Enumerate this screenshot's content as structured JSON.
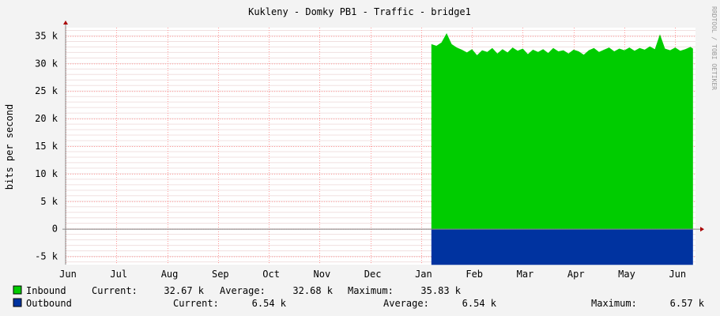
{
  "chart_data": {
    "type": "area",
    "title": "Kukleny - Domky PB1 - Traffic - bridge1",
    "ylabel": "bits per second",
    "watermark": "RRDTOOL / TOBI OETIKER",
    "grid": true,
    "ylim": [
      -6500,
      36500
    ],
    "y_ticks": [
      -5000,
      0,
      5000,
      10000,
      15000,
      20000,
      25000,
      30000,
      35000
    ],
    "y_tick_labels": [
      "-5 k",
      "0",
      "5 k",
      "10 k",
      "15 k",
      "20 k",
      "25 k",
      "30 k",
      "35 k"
    ],
    "x_ticks": [
      "Jun",
      "Jul",
      "Aug",
      "Sep",
      "Oct",
      "Nov",
      "Dec",
      "Jan",
      "Feb",
      "Mar",
      "Apr",
      "May",
      "Jun"
    ],
    "x_tick_positions": [
      0,
      1,
      2,
      3,
      4,
      5,
      6,
      7,
      8,
      9,
      10,
      11,
      12
    ],
    "xlim": [
      0,
      12.4
    ],
    "data_start": 7.2,
    "data_end": 12.35,
    "colors": {
      "inbound": "#00cc00",
      "outbound": "#0033a0",
      "grid": "#ff9999",
      "axis": "#888888"
    },
    "series": [
      {
        "name": "Inbound",
        "color": "#00cc00",
        "x": [
          7.2,
          7.3,
          7.4,
          7.5,
          7.6,
          7.7,
          7.8,
          7.9,
          8.0,
          8.1,
          8.2,
          8.3,
          8.4,
          8.5,
          8.6,
          8.7,
          8.8,
          8.9,
          9.0,
          9.1,
          9.2,
          9.3,
          9.4,
          9.5,
          9.6,
          9.7,
          9.8,
          9.9,
          10.0,
          10.1,
          10.2,
          10.3,
          10.4,
          10.5,
          10.6,
          10.7,
          10.8,
          10.9,
          11.0,
          11.1,
          11.2,
          11.3,
          11.4,
          11.5,
          11.6,
          11.7,
          11.8,
          11.9,
          12.0,
          12.1,
          12.2,
          12.3,
          12.35
        ],
        "values": [
          33500,
          33200,
          33800,
          35500,
          33500,
          32900,
          32500,
          32000,
          32600,
          31500,
          32400,
          32100,
          32800,
          31800,
          32600,
          32000,
          32900,
          32300,
          32700,
          31700,
          32500,
          32100,
          32600,
          31900,
          32800,
          32200,
          32400,
          31800,
          32500,
          32200,
          31600,
          32400,
          32800,
          32100,
          32500,
          32900,
          32200,
          32700,
          32400,
          32900,
          32300,
          32800,
          32500,
          33100,
          32600,
          35300,
          32700,
          32400,
          32900,
          32300,
          32600,
          33000,
          32700
        ]
      },
      {
        "name": "Outbound",
        "color": "#0033a0",
        "x": [
          7.2,
          12.35
        ],
        "values": [
          -6540,
          -6540
        ]
      }
    ]
  },
  "legend": [
    {
      "name": "Inbound",
      "color": "#00cc00",
      "current_label": "Current:",
      "current": "32.67 k",
      "average_label": "Average:",
      "average": "32.68 k",
      "maximum_label": "Maximum:",
      "maximum": "35.83 k"
    },
    {
      "name": "Outbound",
      "color": "#0033a0",
      "current_label": "Current:",
      "current": "6.54 k",
      "average_label": "Average:",
      "average": "6.54 k",
      "maximum_label": "Maximum:",
      "maximum": "6.57 k"
    }
  ]
}
